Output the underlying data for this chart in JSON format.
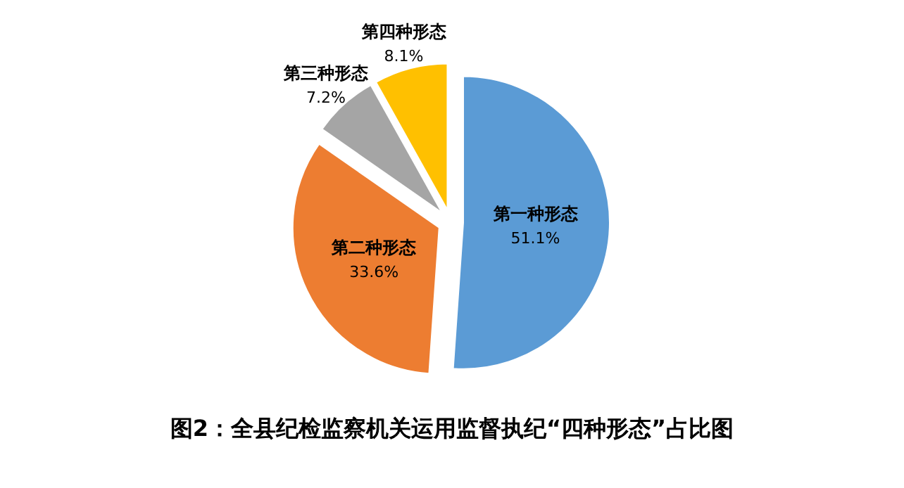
{
  "chart_data": {
    "type": "pie",
    "title": "图2：全县纪检监察机关运用监督执纪“四种形态”占比图",
    "categories": [
      "第一种形态",
      "第二种形态",
      "第三种形态",
      "第四种形态"
    ],
    "values": [
      51.1,
      33.6,
      7.2,
      8.1
    ],
    "colors": [
      "#5b9bd5",
      "#ed7d31",
      "#a5a5a5",
      "#ffc000"
    ],
    "value_labels": [
      "51.1%",
      "33.6%",
      "7.2%",
      "8.1%"
    ]
  }
}
